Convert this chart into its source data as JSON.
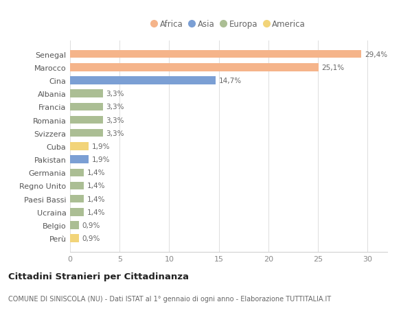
{
  "countries": [
    "Senegal",
    "Marocco",
    "Cina",
    "Albania",
    "Francia",
    "Romania",
    "Svizzera",
    "Cuba",
    "Pakistan",
    "Germania",
    "Regno Unito",
    "Paesi Bassi",
    "Ucraina",
    "Belgio",
    "Perù"
  ],
  "values": [
    29.4,
    25.1,
    14.7,
    3.3,
    3.3,
    3.3,
    3.3,
    1.9,
    1.9,
    1.4,
    1.4,
    1.4,
    1.4,
    0.9,
    0.9
  ],
  "labels": [
    "29,4%",
    "25,1%",
    "14,7%",
    "3,3%",
    "3,3%",
    "3,3%",
    "3,3%",
    "1,9%",
    "1,9%",
    "1,4%",
    "1,4%",
    "1,4%",
    "1,4%",
    "0,9%",
    "0,9%"
  ],
  "categories": [
    "Africa",
    "Africa",
    "Asia",
    "Europa",
    "Europa",
    "Europa",
    "Europa",
    "America",
    "Asia",
    "Europa",
    "Europa",
    "Europa",
    "Europa",
    "Europa",
    "America"
  ],
  "colors": {
    "Africa": "#F5B48A",
    "Asia": "#7B9FD4",
    "Europa": "#ABBE94",
    "America": "#F2D479"
  },
  "legend_order": [
    "Africa",
    "Asia",
    "Europa",
    "America"
  ],
  "title": "Cittadini Stranieri per Cittadinanza",
  "subtitle": "COMUNE DI SINISCOLA (NU) - Dati ISTAT al 1° gennaio di ogni anno - Elaborazione TUTTITALIA.IT",
  "xlim": [
    0,
    32
  ],
  "xticks": [
    0,
    5,
    10,
    15,
    20,
    25,
    30
  ],
  "background_color": "#ffffff",
  "bar_height": 0.6
}
